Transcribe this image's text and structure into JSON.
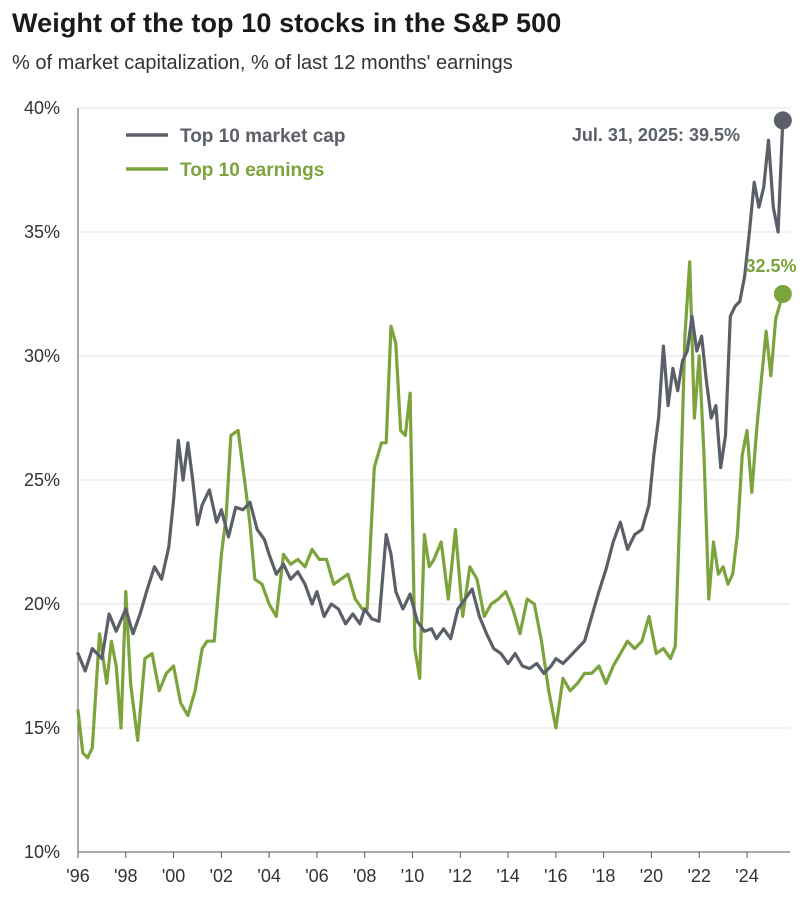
{
  "title": "Weight of the top 10 stocks in the S&P 500",
  "subtitle": "% of market capitalization, % of last 12 months' earnings",
  "chart_data": {
    "type": "line",
    "xlim": [
      1996,
      2025.8
    ],
    "ylim": [
      10,
      40
    ],
    "y_ticks": [
      {
        "value": 40,
        "label": "40%"
      },
      {
        "value": 35,
        "label": "35%"
      },
      {
        "value": 30,
        "label": "30%"
      },
      {
        "value": 25,
        "label": "25%"
      },
      {
        "value": 20,
        "label": "20%"
      },
      {
        "value": 15,
        "label": "15%"
      },
      {
        "value": 10,
        "label": "10%"
      }
    ],
    "x_ticks": [
      {
        "value": 1996,
        "label": "'96"
      },
      {
        "value": 1998,
        "label": "'98"
      },
      {
        "value": 2000,
        "label": "'00"
      },
      {
        "value": 2002,
        "label": "'02"
      },
      {
        "value": 2004,
        "label": "'04"
      },
      {
        "value": 2006,
        "label": "'06"
      },
      {
        "value": 2008,
        "label": "'08"
      },
      {
        "value": 2010,
        "label": "'10"
      },
      {
        "value": 2012,
        "label": "'12"
      },
      {
        "value": 2014,
        "label": "'14"
      },
      {
        "value": 2016,
        "label": "'16"
      },
      {
        "value": 2018,
        "label": "'18"
      },
      {
        "value": 2020,
        "label": "'20"
      },
      {
        "value": 2022,
        "label": "'22"
      },
      {
        "value": 2024,
        "label": "'24"
      }
    ],
    "grid": true,
    "legend_position": "top-left",
    "series": [
      {
        "name": "Top 10 market cap",
        "color": "#5b5f68",
        "x": [
          1996.0,
          1996.3,
          1996.6,
          1997.0,
          1997.3,
          1997.6,
          1998.0,
          1998.3,
          1998.6,
          1998.9,
          1999.2,
          1999.5,
          1999.8,
          2000.0,
          2000.2,
          2000.4,
          2000.6,
          2000.8,
          2001.0,
          2001.2,
          2001.5,
          2001.8,
          2002.0,
          2002.3,
          2002.6,
          2002.9,
          2003.2,
          2003.5,
          2003.8,
          2004.0,
          2004.3,
          2004.6,
          2004.9,
          2005.2,
          2005.5,
          2005.8,
          2006.0,
          2006.3,
          2006.6,
          2006.9,
          2007.2,
          2007.5,
          2007.8,
          2008.0,
          2008.3,
          2008.6,
          2008.9,
          2009.1,
          2009.3,
          2009.6,
          2009.9,
          2010.2,
          2010.5,
          2010.8,
          2011.0,
          2011.3,
          2011.6,
          2011.9,
          2012.2,
          2012.5,
          2012.8,
          2013.1,
          2013.4,
          2013.7,
          2014.0,
          2014.3,
          2014.6,
          2014.9,
          2015.2,
          2015.5,
          2015.8,
          2016.0,
          2016.3,
          2016.6,
          2016.9,
          2017.2,
          2017.5,
          2017.8,
          2018.1,
          2018.4,
          2018.7,
          2019.0,
          2019.3,
          2019.6,
          2019.9,
          2020.1,
          2020.3,
          2020.5,
          2020.7,
          2020.9,
          2021.1,
          2021.3,
          2021.5,
          2021.7,
          2021.9,
          2022.1,
          2022.3,
          2022.5,
          2022.7,
          2022.9,
          2023.1,
          2023.3,
          2023.5,
          2023.7,
          2023.9,
          2024.1,
          2024.3,
          2024.5,
          2024.7,
          2024.9,
          2025.1,
          2025.3,
          2025.5
        ],
        "values": [
          18.0,
          17.3,
          18.2,
          17.8,
          19.6,
          18.9,
          19.8,
          18.8,
          19.6,
          20.6,
          21.5,
          21.0,
          22.3,
          24.2,
          26.6,
          25.0,
          26.5,
          25.0,
          23.2,
          24.0,
          24.6,
          23.3,
          23.8,
          22.7,
          23.9,
          23.8,
          24.1,
          23.0,
          22.6,
          22.0,
          21.2,
          21.6,
          21.0,
          21.3,
          20.8,
          20.0,
          20.5,
          19.5,
          20.0,
          19.8,
          19.2,
          19.6,
          19.2,
          19.8,
          19.4,
          19.3,
          22.8,
          22.0,
          20.5,
          19.8,
          20.4,
          19.3,
          18.9,
          19.0,
          18.6,
          19.0,
          18.6,
          19.8,
          20.2,
          20.6,
          19.5,
          18.8,
          18.2,
          18.0,
          17.6,
          18.0,
          17.5,
          17.4,
          17.6,
          17.2,
          17.5,
          17.8,
          17.6,
          17.9,
          18.2,
          18.5,
          19.5,
          20.5,
          21.4,
          22.5,
          23.3,
          22.2,
          22.8,
          23.0,
          24.0,
          26.0,
          27.5,
          30.4,
          28.0,
          29.5,
          28.6,
          29.8,
          30.2,
          31.6,
          30.2,
          30.8,
          29.0,
          27.5,
          28.0,
          25.5,
          26.8,
          31.6,
          32.0,
          32.2,
          33.2,
          35.0,
          37.0,
          36.0,
          36.8,
          38.7,
          36.0,
          35.0,
          39.5
        ]
      },
      {
        "name": "Top 10 earnings",
        "color": "#7ca33c",
        "x": [
          1996.0,
          1996.2,
          1996.4,
          1996.6,
          1996.9,
          1997.2,
          1997.4,
          1997.6,
          1997.8,
          1998.0,
          1998.2,
          1998.5,
          1998.8,
          1999.1,
          1999.4,
          1999.7,
          2000.0,
          2000.3,
          2000.6,
          2000.9,
          2001.2,
          2001.4,
          2001.7,
          2002.0,
          2002.2,
          2002.4,
          2002.7,
          2003.0,
          2003.2,
          2003.4,
          2003.7,
          2004.0,
          2004.3,
          2004.6,
          2004.9,
          2005.2,
          2005.5,
          2005.8,
          2006.1,
          2006.4,
          2006.7,
          2007.0,
          2007.3,
          2007.6,
          2007.9,
          2008.1,
          2008.4,
          2008.7,
          2008.9,
          2009.1,
          2009.3,
          2009.5,
          2009.7,
          2009.9,
          2010.1,
          2010.3,
          2010.5,
          2010.7,
          2010.9,
          2011.2,
          2011.5,
          2011.8,
          2012.1,
          2012.4,
          2012.7,
          2013.0,
          2013.3,
          2013.6,
          2013.9,
          2014.2,
          2014.5,
          2014.8,
          2015.1,
          2015.4,
          2015.7,
          2016.0,
          2016.3,
          2016.6,
          2016.9,
          2017.2,
          2017.5,
          2017.8,
          2018.1,
          2018.4,
          2018.7,
          2019.0,
          2019.3,
          2019.6,
          2019.9,
          2020.2,
          2020.5,
          2020.8,
          2021.0,
          2021.2,
          2021.4,
          2021.6,
          2021.8,
          2022.0,
          2022.2,
          2022.4,
          2022.6,
          2022.8,
          2023.0,
          2023.2,
          2023.4,
          2023.6,
          2023.8,
          2024.0,
          2024.2,
          2024.4,
          2024.6,
          2024.8,
          2025.0,
          2025.2,
          2025.5
        ],
        "values": [
          15.7,
          14.0,
          13.8,
          14.2,
          18.8,
          16.8,
          18.5,
          17.5,
          15.0,
          20.5,
          16.8,
          14.5,
          17.8,
          18.0,
          16.5,
          17.2,
          17.5,
          16.0,
          15.5,
          16.5,
          18.2,
          18.5,
          18.5,
          22.0,
          23.5,
          26.8,
          27.0,
          24.8,
          23.2,
          21.0,
          20.8,
          20.0,
          19.5,
          22.0,
          21.6,
          21.8,
          21.5,
          22.2,
          21.8,
          21.8,
          20.8,
          21.0,
          21.2,
          20.2,
          19.8,
          19.8,
          25.5,
          26.5,
          26.5,
          31.2,
          30.5,
          27.0,
          26.8,
          28.5,
          18.2,
          17.0,
          22.8,
          21.5,
          21.8,
          22.5,
          20.2,
          23.0,
          19.5,
          21.5,
          21.0,
          19.5,
          20.0,
          20.2,
          20.5,
          19.8,
          18.8,
          20.2,
          20.0,
          18.5,
          16.5,
          15.0,
          17.0,
          16.5,
          16.8,
          17.2,
          17.2,
          17.5,
          16.8,
          17.5,
          18.0,
          18.5,
          18.2,
          18.5,
          19.5,
          18.0,
          18.2,
          17.8,
          18.3,
          24.0,
          30.8,
          33.8,
          27.5,
          30.0,
          26.0,
          20.2,
          22.5,
          21.2,
          21.5,
          20.8,
          21.2,
          22.8,
          26.0,
          27.0,
          24.5,
          27.0,
          29.0,
          31.0,
          29.2,
          31.5,
          32.5
        ]
      }
    ],
    "annotations": [
      {
        "text": "Jul. 31, 2025: 39.5%",
        "x": 2025.5,
        "y": 39.5,
        "series": "Top 10 market cap"
      },
      {
        "text": "32.5%",
        "x": 2025.5,
        "y": 32.5,
        "series": "Top 10 earnings"
      }
    ]
  }
}
